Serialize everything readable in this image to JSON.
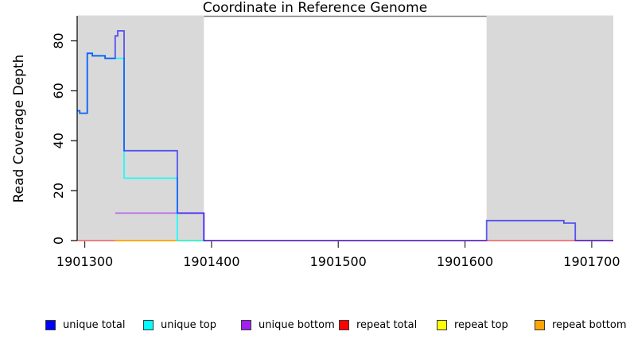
{
  "chart_data": {
    "type": "line",
    "line_style": "step-after",
    "title": "",
    "xlabel": "Coordinate in Reference Genome",
    "ylabel": "Read Coverage Depth",
    "xlim": [
      1901294,
      1901717
    ],
    "ylim": [
      0,
      90
    ],
    "x_ticks": [
      1901300,
      1901400,
      1901500,
      1901600,
      1901700
    ],
    "y_ticks": [
      0,
      20,
      40,
      60,
      80
    ],
    "grid": false,
    "legend_position": "bottom",
    "plot_bg": "#FFFFFF",
    "shaded_region_color": "#D9D9D9",
    "top_border_color": "#7F7F7F",
    "axis_color": "#000000",
    "shaded_regions": [
      {
        "x_start": 1901294,
        "x_end": 1901394
      },
      {
        "x_start": 1901617,
        "x_end": 1901717
      }
    ],
    "series": [
      {
        "name": "repeat total",
        "color": "#FF0000",
        "opacity": 0.52,
        "x_end": 1901717,
        "steps": [
          [
            1901294,
            0
          ]
        ]
      },
      {
        "name": "repeat top",
        "color": "#FFFF00",
        "opacity": 0.8,
        "x_end": 1901394,
        "steps": [
          [
            1901324,
            0
          ]
        ]
      },
      {
        "name": "repeat bottom",
        "color": "#FFA500",
        "opacity": 1.0,
        "x_end": 1901373,
        "steps": [
          [
            1901324,
            0
          ]
        ]
      },
      {
        "name": "unique bottom",
        "color": "#A020F0",
        "opacity": 0.6,
        "x_end": 1901395,
        "steps": [
          [
            1901324,
            11
          ],
          [
            1901394,
            0
          ]
        ]
      },
      {
        "name": "unique top",
        "color": "#00FFFF",
        "opacity": 0.85,
        "x_end": 1901394,
        "steps": [
          [
            1901294,
            52
          ],
          [
            1901296,
            51
          ],
          [
            1901302,
            75
          ],
          [
            1901306,
            74
          ],
          [
            1901316,
            73
          ],
          [
            1901331,
            25
          ],
          [
            1901373,
            0
          ]
        ]
      },
      {
        "name": "unique total",
        "color": "#0000FF",
        "opacity": 0.62,
        "x_end": 1901717,
        "steps": [
          [
            1901294,
            52
          ],
          [
            1901296,
            51
          ],
          [
            1901302,
            75
          ],
          [
            1901306,
            74
          ],
          [
            1901316,
            73
          ],
          [
            1901324,
            82
          ],
          [
            1901326,
            84
          ],
          [
            1901331,
            36
          ],
          [
            1901373,
            11
          ],
          [
            1901394,
            0
          ],
          [
            1901617,
            8
          ],
          [
            1901678,
            7
          ],
          [
            1901687,
            0
          ]
        ]
      }
    ],
    "legend": [
      {
        "label": "unique total",
        "color": "#0000FF"
      },
      {
        "label": "unique top",
        "color": "#00FFFF"
      },
      {
        "label": "unique bottom",
        "color": "#A020F0"
      },
      {
        "label": "repeat total",
        "color": "#FF0000"
      },
      {
        "label": "repeat top",
        "color": "#FFFF00"
      },
      {
        "label": "repeat bottom",
        "color": "#FFA500"
      }
    ]
  }
}
